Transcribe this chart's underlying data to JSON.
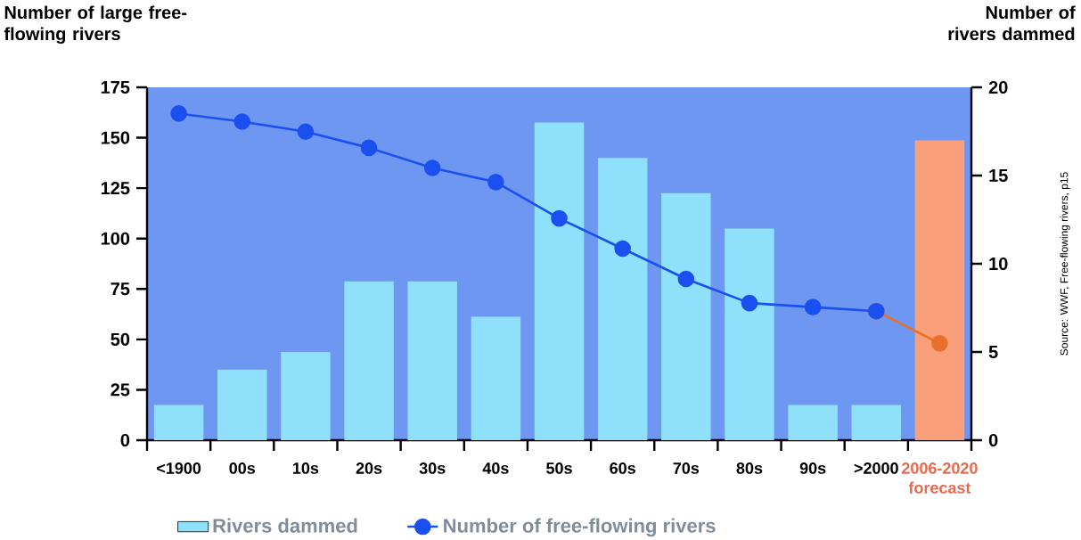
{
  "chart_data": {
    "type": "bar",
    "categories": [
      "<1900",
      "00s",
      "10s",
      "20s",
      "30s",
      "40s",
      "50s",
      "60s",
      "70s",
      "80s",
      "90s",
      ">2000",
      "2006-2020 forecast"
    ],
    "ylabel": "Number of large free-flowing rivers",
    "y2label": "Number of rivers dammed",
    "ylim": [
      0,
      175
    ],
    "yticks": [
      0,
      25,
      50,
      75,
      100,
      125,
      150,
      175
    ],
    "y2lim": [
      0,
      20
    ],
    "y2ticks": [
      0,
      5,
      10,
      15,
      20
    ],
    "legend": "bottom",
    "marker": "circle",
    "annotations": [
      "Source: WWF, Free-flowing rivers, p15"
    ],
    "series": [
      {
        "name": "Rivers dammed",
        "axis": "y2",
        "color": "#8ee0fb",
        "colors": [
          "#8ee0fb",
          "#8ee0fb",
          "#8ee0fb",
          "#8ee0fb",
          "#8ee0fb",
          "#8ee0fb",
          "#8ee0fb",
          "#8ee0fb",
          "#8ee0fb",
          "#8ee0fb",
          "#8ee0fb",
          "#8ee0fb",
          "#f9a07a"
        ],
        "values": [
          2,
          4,
          5,
          9,
          9,
          7,
          18,
          16,
          14,
          12,
          2,
          2,
          17
        ]
      },
      {
        "name": "Number of free-flowing rivers",
        "type": "line",
        "axis": "y",
        "color": "#1a4ff0",
        "values": [
          162,
          158,
          153,
          145,
          135,
          128,
          110,
          95,
          80,
          68,
          66,
          64,
          null
        ]
      },
      {
        "type": "line",
        "axis": "y",
        "color": "#e8702a",
        "values": [
          null,
          null,
          null,
          null,
          null,
          null,
          null,
          null,
          null,
          null,
          null,
          64,
          48
        ]
      }
    ]
  }
}
